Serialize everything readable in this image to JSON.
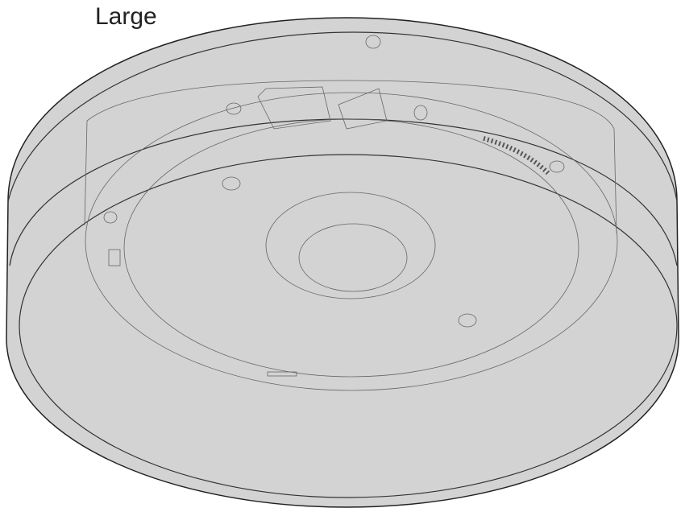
{
  "label": "Large"
}
